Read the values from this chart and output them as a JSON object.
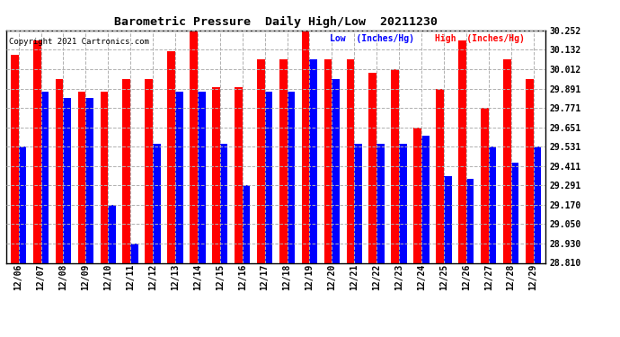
{
  "title": "Barometric Pressure  Daily High/Low  20211230",
  "copyright": "Copyright 2021 Cartronics.com",
  "legend_low": "Low  (Inches/Hg)",
  "legend_high": "High  (Inches/Hg)",
  "dates": [
    "12/06",
    "12/07",
    "12/08",
    "12/09",
    "12/10",
    "12/11",
    "12/12",
    "12/13",
    "12/14",
    "12/15",
    "12/16",
    "12/17",
    "12/18",
    "12/19",
    "12/20",
    "12/21",
    "12/22",
    "12/23",
    "12/24",
    "12/25",
    "12/26",
    "12/27",
    "12/28",
    "12/29"
  ],
  "highs": [
    30.1,
    30.19,
    29.95,
    29.87,
    29.87,
    29.95,
    29.95,
    30.12,
    30.25,
    29.9,
    29.9,
    30.07,
    30.07,
    30.25,
    30.07,
    30.07,
    29.99,
    30.01,
    29.65,
    29.89,
    30.19,
    29.77,
    30.07,
    29.95
  ],
  "lows": [
    29.53,
    29.87,
    29.83,
    29.83,
    29.17,
    28.93,
    29.55,
    29.87,
    29.87,
    29.55,
    29.29,
    29.87,
    29.87,
    30.07,
    29.95,
    29.55,
    29.55,
    29.55,
    29.6,
    29.35,
    29.33,
    29.53,
    29.43,
    29.53
  ],
  "ymin": 28.81,
  "ymax": 30.252,
  "yticks": [
    28.81,
    28.93,
    29.05,
    29.17,
    29.291,
    29.411,
    29.531,
    29.651,
    29.771,
    29.891,
    30.012,
    30.132,
    30.252
  ],
  "bar_color_high": "#ff0000",
  "bar_color_low": "#0000ff",
  "bg_color": "#ffffff",
  "grid_color": "#b0b0b0"
}
